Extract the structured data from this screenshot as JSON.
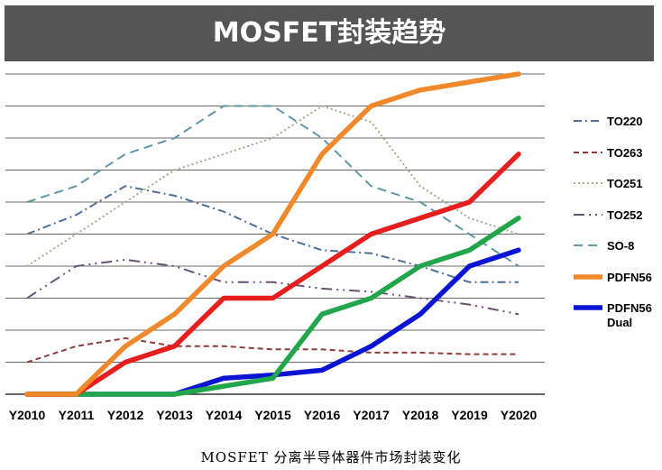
{
  "title": "MOSFET封装趋势",
  "caption": "MOSFET 分离半导体器件市场封装变化",
  "chart_data": {
    "type": "line",
    "categories": [
      "Y2010",
      "Y2011",
      "Y2012",
      "Y2013",
      "Y2014",
      "Y2015",
      "Y2016",
      "Y2017",
      "Y2018",
      "Y2019",
      "Y2020"
    ],
    "ylim": [
      0,
      10
    ],
    "grid": true,
    "legend_position": "right",
    "series": [
      {
        "name": "TO220",
        "color": "#4F6E9A",
        "dash": "dashdot",
        "values": [
          5,
          5.6,
          6.5,
          6.2,
          5.7,
          5.0,
          4.5,
          4.4,
          4.0,
          3.5,
          3.5
        ]
      },
      {
        "name": "TO263",
        "color": "#8C3C3C",
        "dash": "dash",
        "values": [
          1.0,
          1.5,
          1.75,
          1.5,
          1.5,
          1.4,
          1.4,
          1.3,
          1.3,
          1.25,
          1.25
        ]
      },
      {
        "name": "TO251",
        "color": "#A8A88C",
        "dash": "dot",
        "values": [
          4.0,
          5.0,
          6.0,
          7.0,
          7.5,
          8.0,
          9.0,
          8.5,
          6.5,
          5.5,
          5.0
        ]
      },
      {
        "name": "TO252",
        "color": "#6A5277",
        "dash": "dashdotdot",
        "values": [
          3.0,
          4.0,
          4.2,
          4.0,
          3.5,
          3.5,
          3.3,
          3.2,
          3.0,
          2.8,
          2.5
        ]
      },
      {
        "name": "SO-8",
        "color": "#5F97A6",
        "dash": "longdash",
        "values": [
          6.0,
          6.5,
          7.5,
          8.0,
          9.0,
          9.0,
          8.0,
          6.5,
          6.0,
          5.0,
          4.0
        ]
      },
      {
        "name": "PDFN56",
        "color": "#F0892C",
        "dash": "solid",
        "values": [
          0,
          0,
          1.5,
          2.5,
          4.0,
          5.0,
          7.5,
          9.0,
          9.5,
          9.75,
          10.0
        ]
      },
      {
        "name": "PDFN56 Dual",
        "color": "#0A14D2",
        "dash": "solid",
        "values": [
          0,
          0,
          0,
          0,
          0.5,
          0.6,
          0.75,
          1.5,
          2.5,
          4.0,
          4.5
        ]
      },
      {
        "name": "",
        "color": "#E61E1E",
        "dash": "solid",
        "values": [
          0,
          0,
          1.0,
          1.5,
          3.0,
          3.0,
          4.0,
          5.0,
          5.5,
          6.0,
          7.5
        ]
      },
      {
        "name": "",
        "color": "#22A64B",
        "dash": "solid",
        "values": [
          0,
          0,
          0,
          0,
          0.25,
          0.5,
          2.5,
          3.0,
          4.0,
          4.5,
          5.5
        ]
      }
    ]
  }
}
